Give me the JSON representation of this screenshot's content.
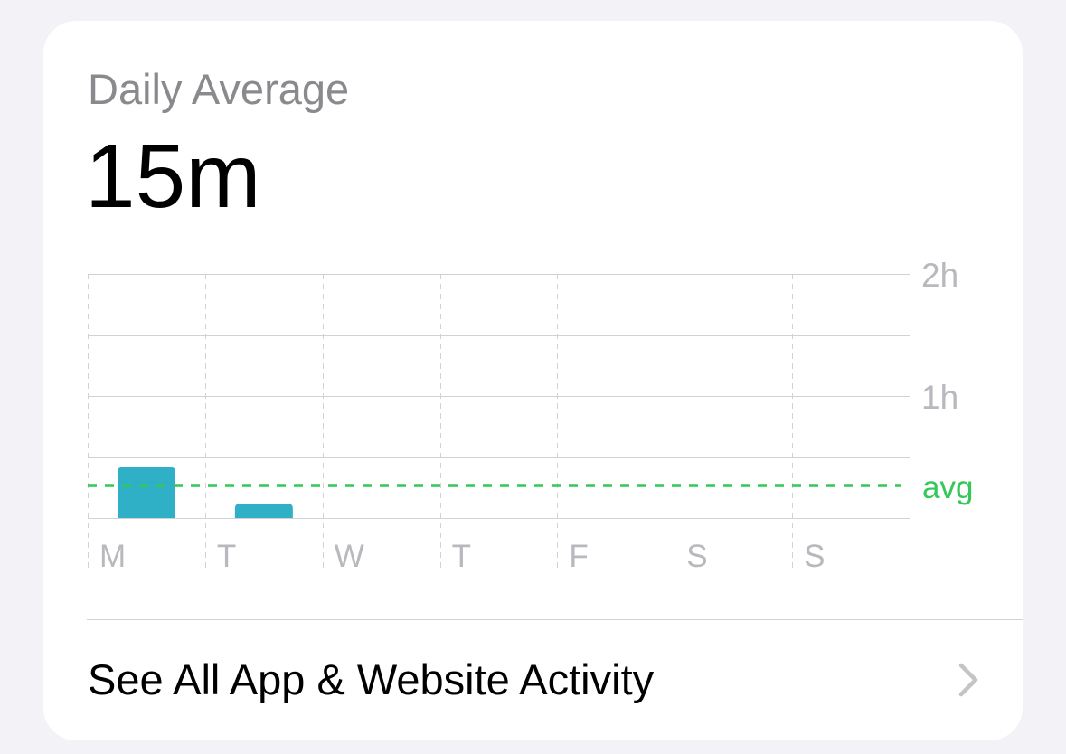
{
  "summary": {
    "label": "Daily Average",
    "value": "15m"
  },
  "chart_data": {
    "type": "bar",
    "categories": [
      "M",
      "T",
      "W",
      "T",
      "F",
      "S",
      "S"
    ],
    "values": [
      25,
      7,
      0,
      0,
      0,
      0,
      0
    ],
    "unit": "minutes",
    "ylim": [
      0,
      120
    ],
    "y_tick_labels": [
      {
        "value": 120,
        "label": "2h"
      },
      {
        "value": 60,
        "label": "1h"
      }
    ],
    "average": {
      "value": 16,
      "label": "avg"
    },
    "grid": true,
    "colors": {
      "bar": "#30b0c7",
      "average": "#34c759",
      "grid": "#d1d1d6",
      "tick": "#b8b8bd"
    }
  },
  "footer": {
    "link_label": "See All App & Website Activity",
    "chevron_icon": "chevron-right-icon"
  }
}
